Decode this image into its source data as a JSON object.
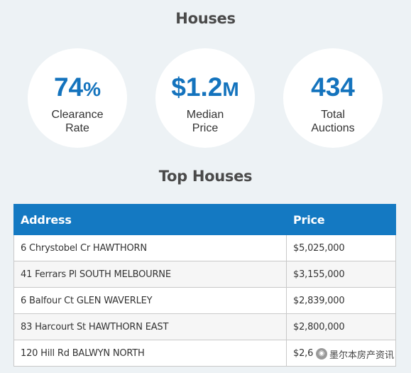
{
  "header": {
    "title": "Houses"
  },
  "stats": [
    {
      "value": "74",
      "unit": "%",
      "label_line1": "Clearance",
      "label_line2": "Rate"
    },
    {
      "value_prefix": "$",
      "value": "1.2",
      "unit": "M",
      "label_line1": "Median",
      "label_line2": "Price"
    },
    {
      "value": "434",
      "label_line1": "Total",
      "label_line2": "Auctions"
    }
  ],
  "top_houses": {
    "title": "Top Houses",
    "columns": [
      "Address",
      "Price"
    ],
    "rows": [
      {
        "address": "6 Chrystobel Cr HAWTHORN",
        "price": "$5,025,000"
      },
      {
        "address": "41 Ferrars Pl SOUTH MELBOURNE",
        "price": "$3,155,000"
      },
      {
        "address": "6 Balfour Ct GLEN WAVERLEY",
        "price": "$2,839,000"
      },
      {
        "address": "83 Harcourt St HAWTHORN EAST",
        "price": "$2,800,000"
      },
      {
        "address": "120 Hill Rd BALWYN NORTH",
        "price": "$2,6"
      }
    ]
  },
  "watermark": {
    "text": "墨尔本房产资讯",
    "icon": "wechat-icon"
  },
  "colors": {
    "accent": "#1473bd",
    "header_bg": "#1479c2",
    "page_bg": "#edf2f5"
  }
}
